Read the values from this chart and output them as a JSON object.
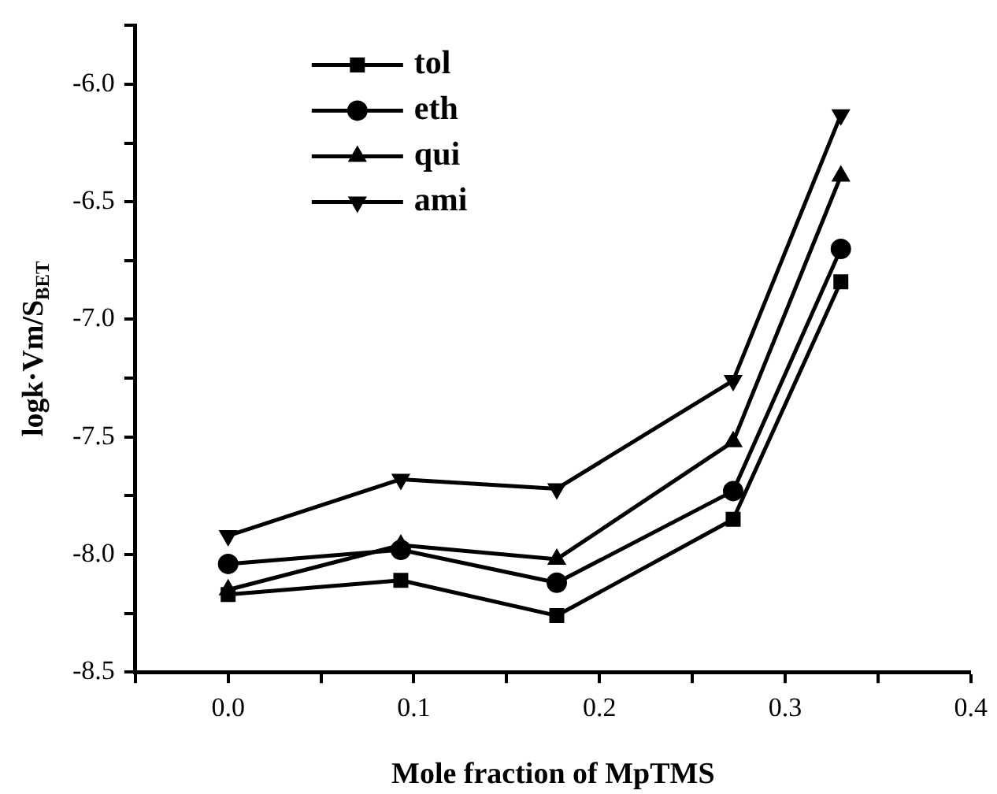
{
  "chart_data": {
    "type": "line",
    "xlabel": "Mole fraction of MpTMS",
    "ylabel": "logk·Vm/S$_{BET}$",
    "x": [
      0,
      0.093,
      0.177,
      0.272,
      0.33
    ],
    "series": [
      {
        "name": "tol",
        "color": "#000000",
        "marker": "square",
        "values": [
          -8.17,
          -8.11,
          -8.26,
          -7.85,
          -6.84
        ]
      },
      {
        "name": "eth",
        "color": "#000000",
        "marker": "circle",
        "values": [
          -8.04,
          -7.98,
          -8.12,
          -7.73,
          -6.7
        ]
      },
      {
        "name": "qui",
        "color": "#000000",
        "marker": "triangle",
        "values": [
          -8.15,
          -7.96,
          -8.02,
          -7.52,
          -6.39
        ]
      },
      {
        "name": "ami",
        "color": "#000000",
        "marker": "triangle_down",
        "values": [
          -7.92,
          -7.68,
          -7.72,
          -7.26,
          -6.13
        ]
      }
    ],
    "xlim": [
      -0.05,
      0.4
    ],
    "xticks": [
      {
        "value": -0.05,
        "label": null
      },
      {
        "value": 0,
        "label": "0.0"
      },
      {
        "value": 0.05,
        "label": null
      },
      0.1,
      {
        "value": 0.15,
        "label": null
      },
      0.2,
      {
        "value": 0.25,
        "label": null
      },
      0.3,
      {
        "value": 0.35,
        "label": null
      },
      0.4
    ],
    "ylim": [
      -8.5,
      -5.75
    ],
    "yticks": [
      -8.5,
      {
        "value": -8.25,
        "label": null
      },
      {
        "value": -8,
        "label": "-8.0"
      },
      {
        "value": -7.75,
        "label": null
      },
      -7.5,
      {
        "value": -7.25,
        "label": null
      },
      {
        "value": -7,
        "label": "-7.0"
      },
      {
        "value": -6.75,
        "label": null
      },
      -6.5,
      {
        "value": -6.25,
        "label": null
      },
      {
        "value": -6,
        "label": "-6.0"
      },
      {
        "value": -5.75,
        "label": null
      }
    ],
    "grid": false,
    "legend": "top left",
    "line_style": "solid"
  }
}
